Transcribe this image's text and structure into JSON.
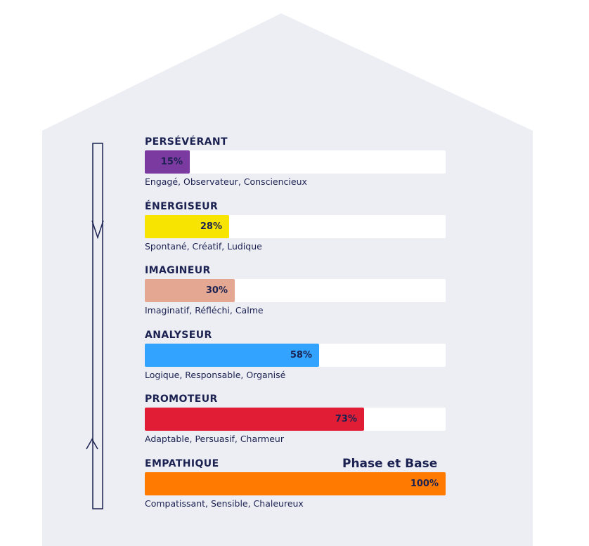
{
  "phase_label": "Phase et Base",
  "chart_data": {
    "type": "bar",
    "orientation": "horizontal",
    "xlim": [
      0,
      100
    ],
    "unit": "%",
    "categories": [
      "PERSÉVÉRANT",
      "ÉNERGISEUR",
      "IMAGINEUR",
      "ANALYSEUR",
      "PROMOTEUR",
      "EMPATHIQUE"
    ],
    "values": [
      15,
      28,
      30,
      58,
      73,
      100
    ],
    "value_labels": [
      "15%",
      "28%",
      "30%",
      "58%",
      "73%",
      "100%"
    ],
    "descriptions": [
      "Engagé, Observateur, Consciencieux",
      "Spontané, Créatif, Ludique",
      "Imaginatif, Réfléchi, Calme",
      "Logique, Responsable, Organisé",
      "Adaptable, Persuasif, Charmeur",
      "Compatissant, Sensible, Chaleureux"
    ],
    "colors": [
      "#7b3aa0",
      "#f7e400",
      "#e4a892",
      "#32a4ff",
      "#e11d35",
      "#ff7a00"
    ]
  }
}
